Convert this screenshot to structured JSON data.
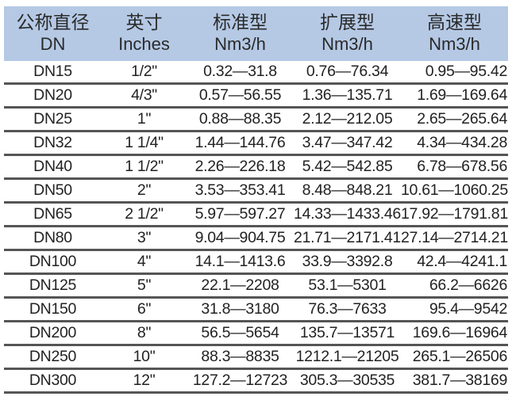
{
  "headers": [
    {
      "zh": "公称直径",
      "en": "DN"
    },
    {
      "zh": "英寸",
      "en": "Inches"
    },
    {
      "zh": "标准型",
      "en": "Nm3/h"
    },
    {
      "zh": "扩展型",
      "en": "Nm3/h"
    },
    {
      "zh": "高速型",
      "en": "Nm3/h"
    }
  ],
  "rows": [
    [
      "DN15",
      "1/2\"",
      "0.32—31.8",
      "0.76—76.34",
      "0.95—95.42"
    ],
    [
      "DN20",
      "4/3\"",
      "0.57—56.55",
      "1.36—135.71",
      "1.69—169.64"
    ],
    [
      "DN25",
      "1\"",
      "0.88—88.35",
      "2.12—212.05",
      "2.65—265.64"
    ],
    [
      "DN32",
      "1 1/4\"",
      "1.44—144.76",
      "3.47—347.42",
      "4.34—434.28"
    ],
    [
      "DN40",
      "1 1/2\"",
      "2.26—226.18",
      "5.42—542.85",
      "6.78—678.56"
    ],
    [
      "DN50",
      "2\"",
      "3.53—353.41",
      "8.48—848.21",
      "10.61—1060.25"
    ],
    [
      "DN65",
      "2 1/2\"",
      "5.97—597.27",
      "14.33—1433.46",
      "17.92—1791.81"
    ],
    [
      "DN80",
      "3\"",
      "9.04—904.75",
      "21.71—2171.41",
      "27.14—2714.21"
    ],
    [
      "DN100",
      "4\"",
      "14.1—1413.6",
      "33.9—3392.8",
      "42.4—4241.1"
    ],
    [
      "DN125",
      "5\"",
      "22.1—2208",
      "53.1—5301",
      "66.2—6626"
    ],
    [
      "DN150",
      "6\"",
      "31.8—3180",
      "76.3—7633",
      "95.4—9542"
    ],
    [
      "DN200",
      "8\"",
      "56.5—5654",
      "135.7—13571",
      "169.6—16964"
    ],
    [
      "DN250",
      "10\"",
      "88.3—8835",
      "1212.1—21205",
      "265.1—26506"
    ],
    [
      "DN300",
      "12\"",
      "127.2—12723",
      "305.3—30535",
      "381.7—38169"
    ]
  ],
  "colors": {
    "header_bg": "#b5c9e5",
    "rule": "#555555"
  }
}
